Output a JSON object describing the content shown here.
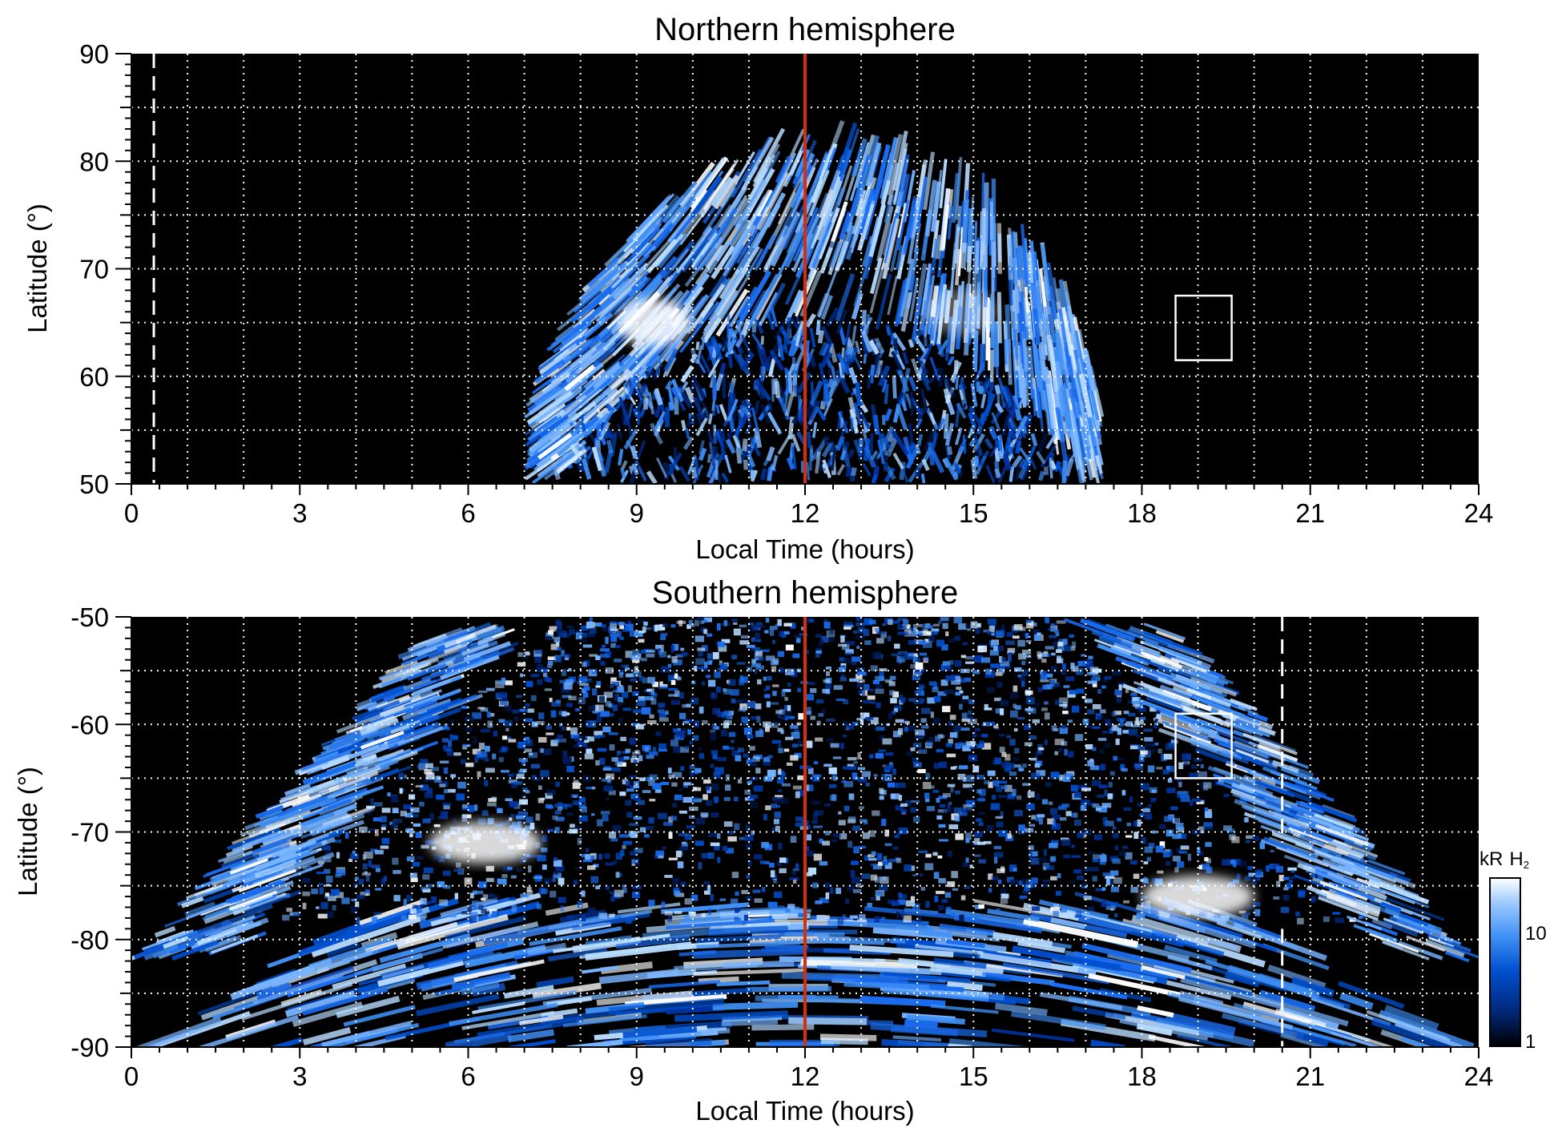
{
  "chart_data": [
    {
      "type": "heatmap",
      "title": "Northern hemisphere",
      "xlabel": "Local Time (hours)",
      "ylabel": "Latitude (°)",
      "xlim": [
        0,
        24
      ],
      "ylim": [
        50,
        90
      ],
      "x_ticks": [
        "0",
        "3",
        "6",
        "9",
        "12",
        "15",
        "18",
        "21",
        "24"
      ],
      "y_ticks": [
        "50",
        "60",
        "70",
        "80",
        "90"
      ],
      "grid": true,
      "emission_region": {
        "lt_start": 7.0,
        "lt_end": 17.3,
        "lat_peak_edge": 79,
        "lat_dark_band": [
          66,
          69
        ]
      },
      "bright_spots": [
        {
          "lt": 9.3,
          "lat": 65,
          "label": ""
        },
        {
          "lt": 14.8,
          "lat": 66,
          "label": ""
        }
      ],
      "marker_line": {
        "lt": 12,
        "color": "#d03010"
      },
      "dashed_line": {
        "lt": 0.4
      },
      "box": {
        "lt": [
          18.6,
          19.6
        ],
        "lat": [
          61.5,
          67.5
        ]
      }
    },
    {
      "type": "heatmap",
      "title": "Southern hemisphere",
      "xlabel": "Local Time (hours)",
      "ylabel": "Latitude (°)",
      "xlim": [
        0,
        24
      ],
      "ylim": [
        -90,
        -50
      ],
      "x_ticks": [
        "0",
        "3",
        "6",
        "9",
        "12",
        "15",
        "18",
        "21",
        "24"
      ],
      "y_ticks": [
        "-90",
        "-80",
        "-70",
        "-60",
        "-50"
      ],
      "grid": true,
      "emission_region": {
        "lt_start": 0.3,
        "lt_end": 23.8
      },
      "bright_spots": [
        {
          "lt": 6.3,
          "lat": -71,
          "label": ""
        },
        {
          "lt": 19.0,
          "lat": -76,
          "label": ""
        }
      ],
      "marker_line": {
        "lt": 12,
        "color": "#d03010"
      },
      "dashed_line": {
        "lt": 20.5
      },
      "box": {
        "lt": [
          18.6,
          19.6
        ],
        "lat": [
          -65,
          -59
        ]
      }
    }
  ],
  "colorbar": {
    "label_kr": "kR",
    "label_h": "H",
    "label_sub": "2",
    "ticks": [
      "1",
      "10"
    ],
    "scale": "log",
    "range": [
      1,
      25
    ],
    "colors": [
      "#000000",
      "#002a80",
      "#0050d0",
      "#3f8ff5",
      "#9ccaff",
      "#ffffff"
    ]
  }
}
